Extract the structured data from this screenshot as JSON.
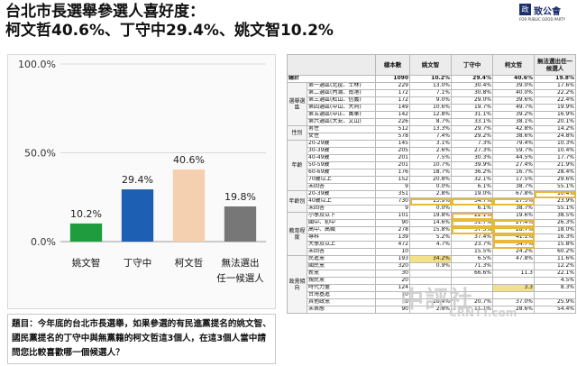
{
  "title": {
    "line1": "台北市長選舉參選人喜好度：",
    "line2": "柯文哲40.6%、丁守中29.4%、姚文智10.2%"
  },
  "logo": {
    "box": "政治",
    "cn": "致公會",
    "en": "FOR PUBLIC GOOD PARTY"
  },
  "colors": {
    "yao": "#1f9d3e",
    "ding": "#1d5fb3",
    "ko": "#f5d0b0",
    "none": "#777777",
    "highlight": "#f3e08a",
    "outline": "#e7b93a"
  },
  "chart_data": {
    "type": "bar",
    "categories": [
      "姚文智",
      "丁守中",
      "柯文哲",
      "無法選出任一候選人"
    ],
    "category_lines": [
      [
        "姚文智"
      ],
      [
        "丁守中"
      ],
      [
        "柯文哲"
      ],
      [
        "無法選出",
        "任一候選人"
      ]
    ],
    "values": [
      10.2,
      29.4,
      40.6,
      19.8
    ],
    "value_labels": [
      "10.2%",
      "29.4%",
      "40.6%",
      "19.8%"
    ],
    "bar_colors": [
      "#1f9d3e",
      "#1d5fb3",
      "#f5d0b0",
      "#777777"
    ],
    "ylim": [
      0,
      100
    ],
    "yticks": [
      0,
      50,
      100
    ],
    "ytick_labels": [
      "0.0%",
      "50.0%",
      "100.0%"
    ],
    "grid": true,
    "title": "",
    "xlabel": "",
    "ylabel": ""
  },
  "question": {
    "text": "題目：今年底的台北市長選舉，如果參選的有民進黨提名的姚文智、國民黨提名的丁守中與無黨籍的柯文哲這3個人，在這3個人當中請問您比較喜歡哪一個候選人？"
  },
  "table": {
    "headers": [
      "樣本數",
      "姚文智",
      "丁守中",
      "柯文哲",
      "無法選出任一候選人"
    ],
    "total": {
      "label": "總計",
      "values": [
        "1090",
        "10.2%",
        "29.4%",
        "40.6%",
        "19.8%"
      ]
    },
    "groups": [
      {
        "name": "選舉選區",
        "rows": [
          {
            "label": "第一選區(北投、士林)",
            "values": [
              "229",
              "13.0%",
              "30.4%",
              "39.0%",
              "17.6%"
            ]
          },
          {
            "label": "第二選區(內湖、南港)",
            "values": [
              "172",
              "7.1%",
              "30.8%",
              "40.0%",
              "22.2%"
            ]
          },
          {
            "label": "第三選區(松山、信義)",
            "values": [
              "172",
              "9.0%",
              "29.0%",
              "39.6%",
              "22.4%"
            ]
          },
          {
            "label": "第四選區(中山、大同)",
            "values": [
              "149",
              "10.6%",
              "19.7%",
              "49.7%",
              "19.9%"
            ]
          },
          {
            "label": "第五選區(中正、萬華)",
            "values": [
              "142",
              "12.8%",
              "31.1%",
              "39.2%",
              "16.9%"
            ]
          },
          {
            "label": "第六選區(大安、文山)",
            "values": [
              "226",
              "8.7%",
              "33.1%",
              "38.1%",
              "20.1%"
            ]
          }
        ]
      },
      {
        "name": "性別",
        "rows": [
          {
            "label": "男性",
            "values": [
              "512",
              "13.3%",
              "29.7%",
              "42.8%",
              "14.2%"
            ]
          },
          {
            "label": "女性",
            "values": [
              "578",
              "7.4%",
              "29.2%",
              "38.6%",
              "24.8%"
            ]
          }
        ]
      },
      {
        "name": "年齡",
        "rows": [
          {
            "label": "20-29歲",
            "values": [
              "145",
              "3.1%",
              "7.3%",
              "79.4%",
              "10.3%"
            ]
          },
          {
            "label": "30-39歲",
            "values": [
              "205",
              "2.6%",
              "27.3%",
              "59.7%",
              "10.4%"
            ]
          },
          {
            "label": "40-49歲",
            "values": [
              "201",
              "7.5%",
              "30.3%",
              "44.5%",
              "17.7%"
            ]
          },
          {
            "label": "50-59歲",
            "values": [
              "201",
              "10.7%",
              "39.9%",
              "27.4%",
              "21.9%"
            ]
          },
          {
            "label": "60-69歲",
            "values": [
              "176",
              "18.7%",
              "36.2%",
              "16.7%",
              "28.4%"
            ]
          },
          {
            "label": "70歲以上",
            "values": [
              "152",
              "20.8%",
              "32.1%",
              "17.5%",
              "29.6%"
            ]
          },
          {
            "label": "未回答",
            "values": [
              "9",
              "0.0%",
              "6.1%",
              "38.7%",
              "55.1%"
            ]
          }
        ]
      },
      {
        "name": "年齡別",
        "rows": [
          {
            "label": "20-39歲",
            "values": [
              "351",
              "2.8%",
              "19.0%",
              "67.8%",
              "10.4%"
            ]
          },
          {
            "label": "40歲以上",
            "values": [
              "730",
              "13.9%",
              "34.7%",
              "27.5%",
              "23.9%"
            ]
          },
          {
            "label": "未回答",
            "values": [
              "9",
              "0.0%",
              "6.1%",
              "38.7%",
              "55.1%"
            ]
          }
        ]
      },
      {
        "name": "教育程度",
        "rows": [
          {
            "label": "小學及以下",
            "values": [
              "101",
              "19.8%",
              "22.1%",
              "19.6%",
              "38.5%"
            ]
          },
          {
            "label": "國中、初中",
            "values": [
              "90",
              "14.6%",
              "31.7%",
              "27.4%",
              "26.3%"
            ]
          },
          {
            "label": "高中、高職",
            "values": [
              "278",
              "15.8%",
              "37.5%",
              "28.7%",
              "18.0%"
            ]
          },
          {
            "label": "專科",
            "values": [
              "139",
              "5.2%",
              "37.4%",
              "41.1%",
              "16.3%"
            ]
          },
          {
            "label": "大學及以上",
            "values": [
              "472",
              "4.7%",
              "23.7%",
              "54.7%",
              "15.8%"
            ]
          },
          {
            "label": "未回答",
            "values": [
              "10",
              "",
              "15.5%",
              "24.2%",
              "60.2%"
            ]
          }
        ]
      },
      {
        "name": "政黨傾向",
        "rows": [
          {
            "label": "民進黨",
            "values": [
              "193",
              "34.2%",
              "6.5%",
              "47.8%",
              "11.6%"
            ]
          },
          {
            "label": "國民黨",
            "values": [
              "320",
              "0.9%",
              "71.3%",
              "",
              "12.2%"
            ]
          },
          {
            "label": "新黨",
            "values": [
              "30",
              "",
              "66.6%",
              "11.3",
              "22.1%"
            ]
          },
          {
            "label": "親民黨",
            "values": [
              "20",
              "",
              "",
              "",
              "4.5%"
            ]
          },
          {
            "label": "時代力量",
            "values": [
              "124",
              "",
              "",
              "3.3",
              "8.3%"
            ]
          },
          {
            "label": "台灣基進",
            "values": [
              "10",
              "",
              "",
              "",
              ""
            ]
          },
          {
            "label": "其他政黨",
            "values": [
              "8",
              "16.4%",
              "20.7%",
              "37.0%",
              "25.9%"
            ]
          },
          {
            "label": "未表態",
            "values": [
              "90",
              "2.8%",
              "11.1%",
              "28.6%",
              "54.4%"
            ]
          }
        ]
      }
    ]
  },
  "watermark": {
    "main": "中評社",
    "sub": "CRNTT.com"
  }
}
